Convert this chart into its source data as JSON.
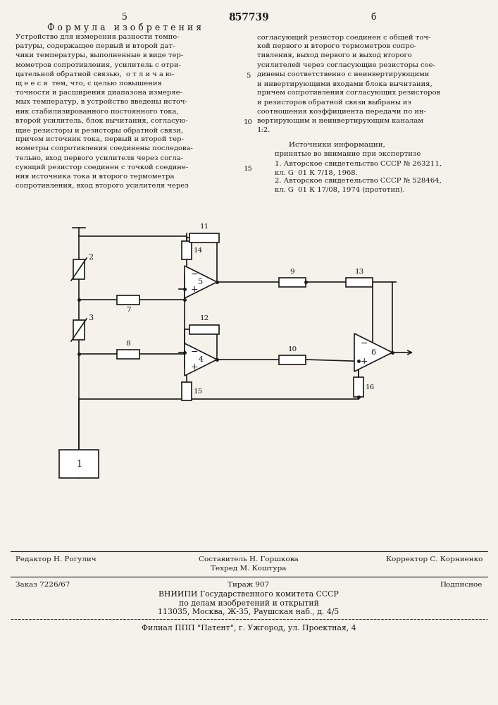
{
  "bg_color": "#f5f2eb",
  "text_color": "#1a1a1a",
  "page_number_left": "5",
  "page_number_center": "857739",
  "page_number_right": "б",
  "title_formula": "Ф о р м у л а   и з о б р е т е н и я",
  "left_col_text": [
    "Устройство для измерения разности темпе-",
    "ратуры, содержащее первый и второй дат-",
    "чики температуры, выполненные в виде тер-",
    "мометров сопротивления, усилитель с отри-",
    "цательной обратной связью,  о т л и ч а ю-",
    "щ е е с я  тем, что, с целью повышения",
    "точности и расширения диапазона измеряе-",
    "мых температур, в устройство введены источ-",
    "ник стабилизированного постоянного тока,",
    "второй усилитель, блок вычитания, согласую-",
    "щие резисторы и резисторы обратной связи,",
    "причем источник тока, первый и второй тер-",
    "мометры сопротивления соединены последова-",
    "тельно, вход первого усилителя через согла-",
    "сующий резистор соединен с точкой соедине-",
    "ния источника тока и второго термометра",
    "сопротивления, вход второго усилителя через"
  ],
  "right_col_text": [
    "согласующий резистор соединен с общей точ-",
    "кой первого и второго термометров сопро-",
    "тивления, выход первого и выход второго",
    "усилителей через согласующие резисторы сое-",
    "динены соответственно с неинвертирующими",
    "и инвертирующими входами блока вычитания,",
    "причем сопротивления согласующих резисторов",
    "и резисторов обратной связи выбраны из",
    "соотношения коэффициента передачи по ин-",
    "вертирующим и неинвертирующим каналам",
    "1:2."
  ],
  "sources_title": "Источники информации,",
  "sources_subtitle": "принятые во внимание при экспертизе",
  "source1": "1. Авторское свидетельство СССР № 263211,",
  "source1b": "кл. G  01 К 7/18, 1968.",
  "source2": "2. Авторское свидетельство СССР № 528464,",
  "source2b": "кл. G  01 К 17/08, 1974 (прототип).",
  "editor_label": "Редактор Н. Рогулич",
  "compiler_label": "Составитель Н. Горшкова",
  "techred_label": "Техред М. Коштура",
  "corrector_label": "Корректор С. Корниенко",
  "order_label": "Заказ 7226/67",
  "tirazh_label": "Тираж 907",
  "podpisnoe_label": "Подписное",
  "vniipи_line1": "ВНИИПИ Государственного комитета СССР",
  "vniipи_line2": "по делам изобретений и открытий",
  "vniipи_line3": "113035, Москва, Ж-35, Раушская наб., д. 4/5",
  "filial_label": "Филиал ППП \"Патент\", г. Ужгород, ул. Проектная, 4"
}
